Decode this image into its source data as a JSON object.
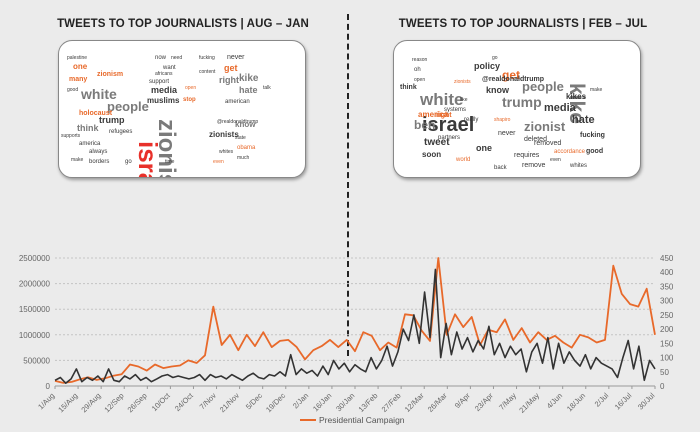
{
  "headings": {
    "left": "TWEETS TO TOP JOURNALISTS | AUG – JAN",
    "right": "TWEETS TO TOP JOURNALISTS | FEB – JUL"
  },
  "colors": {
    "orange": "#e8692a",
    "dark": "#333333",
    "red": "#e8302a"
  },
  "wordcloud_left": [
    {
      "w": "israel",
      "c": "red",
      "s": 26,
      "b": 1
    },
    {
      "w": "zionist",
      "c": "gray",
      "s": 24,
      "b": 1
    },
    {
      "w": "white",
      "c": "gray",
      "s": 14,
      "b": 1
    },
    {
      "w": "people",
      "c": "gray",
      "s": 13,
      "b": 1
    },
    {
      "w": "trump",
      "c": "dark",
      "s": 9,
      "b": 1
    },
    {
      "w": "media",
      "c": "dark",
      "s": 9,
      "b": 1
    },
    {
      "w": "muslims",
      "c": "dark",
      "s": 8,
      "b": 1
    },
    {
      "w": "zionists",
      "c": "dark",
      "s": 8,
      "b": 1
    },
    {
      "w": "kike",
      "c": "gray",
      "s": 10,
      "b": 1
    },
    {
      "w": "right",
      "c": "gray",
      "s": 9,
      "b": 1
    },
    {
      "w": "hate",
      "c": "gray",
      "s": 9,
      "b": 1
    },
    {
      "w": "think",
      "c": "gray",
      "s": 9,
      "b": 1
    },
    {
      "w": "holocaust",
      "c": "orange",
      "s": 7,
      "b": 1
    },
    {
      "w": "zionism",
      "c": "orange",
      "s": 7,
      "b": 1
    },
    {
      "w": "get",
      "c": "orange",
      "s": 9,
      "b": 1
    },
    {
      "w": "one",
      "c": "orange",
      "s": 8,
      "b": 1
    },
    {
      "w": "many",
      "c": "orange",
      "s": 7,
      "b": 1
    },
    {
      "w": "know",
      "c": "gray",
      "s": 8,
      "b": 1
    },
    {
      "w": "never",
      "c": "dark",
      "s": 7,
      "b": 0
    },
    {
      "w": "american",
      "c": "dark",
      "s": 6,
      "b": 0
    },
    {
      "w": "@realdonaldtrump",
      "c": "dark",
      "s": 5,
      "b": 0
    },
    {
      "w": "refugees",
      "c": "dark",
      "s": 6,
      "b": 0
    },
    {
      "w": "america",
      "c": "dark",
      "s": 6,
      "b": 0
    },
    {
      "w": "borders",
      "c": "dark",
      "s": 6,
      "b": 0
    },
    {
      "w": "stop",
      "c": "orange",
      "s": 6,
      "b": 1
    },
    {
      "w": "obama",
      "c": "orange",
      "s": 6,
      "b": 0
    },
    {
      "w": "much",
      "c": "dark",
      "s": 5,
      "b": 0
    },
    {
      "w": "always",
      "c": "dark",
      "s": 6,
      "b": 0
    },
    {
      "w": "support",
      "c": "dark",
      "s": 6,
      "b": 0
    },
    {
      "w": "want",
      "c": "dark",
      "s": 6,
      "b": 0
    },
    {
      "w": "go",
      "c": "dark",
      "s": 6,
      "b": 0
    },
    {
      "w": "make",
      "c": "dark",
      "s": 5,
      "b": 0
    },
    {
      "w": "talk",
      "c": "dark",
      "s": 5,
      "b": 0
    },
    {
      "w": "state",
      "c": "dark",
      "s": 5,
      "b": 0
    },
    {
      "w": "need",
      "c": "dark",
      "s": 5,
      "b": 0
    },
    {
      "w": "good",
      "c": "dark",
      "s": 5,
      "b": 0
    },
    {
      "w": "now",
      "c": "dark",
      "s": 6,
      "b": 0
    },
    {
      "w": "time",
      "c": "dark",
      "s": 5,
      "b": 0
    },
    {
      "w": "whites",
      "c": "dark",
      "s": 5,
      "b": 0
    },
    {
      "w": "palestine",
      "c": "dark",
      "s": 5,
      "b": 0
    },
    {
      "w": "africans",
      "c": "dark",
      "s": 5,
      "b": 0
    },
    {
      "w": "supports",
      "c": "dark",
      "s": 5,
      "b": 0
    },
    {
      "w": "open",
      "c": "orange",
      "s": 5,
      "b": 0
    },
    {
      "w": "even",
      "c": "orange",
      "s": 5,
      "b": 0
    },
    {
      "w": "fucking",
      "c": "dark",
      "s": 5,
      "b": 0
    },
    {
      "w": "content",
      "c": "dark",
      "s": 5,
      "b": 0
    }
  ],
  "wordcloud_right": [
    {
      "w": "israel",
      "c": "dark",
      "s": 20,
      "b": 1
    },
    {
      "w": "white",
      "c": "gray",
      "s": 17,
      "b": 1
    },
    {
      "w": "kike",
      "c": "gray",
      "s": 21,
      "b": 1
    },
    {
      "w": "zionist",
      "c": "gray",
      "s": 13,
      "b": 1
    },
    {
      "w": "trump",
      "c": "gray",
      "s": 14,
      "b": 1
    },
    {
      "w": "people",
      "c": "gray",
      "s": 13,
      "b": 1
    },
    {
      "w": "media",
      "c": "dark",
      "s": 11,
      "b": 1
    },
    {
      "w": "ben",
      "c": "gray",
      "s": 12,
      "b": 1
    },
    {
      "w": "hate",
      "c": "dark",
      "s": 11,
      "b": 1
    },
    {
      "w": "tweet",
      "c": "dark",
      "s": 10,
      "b": 1
    },
    {
      "w": "get",
      "c": "orange",
      "s": 12,
      "b": 1
    },
    {
      "w": "america",
      "c": "orange",
      "s": 8,
      "b": 1
    },
    {
      "w": "policy",
      "c": "dark",
      "s": 9,
      "b": 1
    },
    {
      "w": "@realdonaldtrump",
      "c": "dark",
      "s": 7,
      "b": 1
    },
    {
      "w": "know",
      "c": "dark",
      "s": 9,
      "b": 1
    },
    {
      "w": "one",
      "c": "dark",
      "s": 9,
      "b": 1
    },
    {
      "w": "soon",
      "c": "dark",
      "s": 8,
      "b": 1
    },
    {
      "w": "right",
      "c": "orange",
      "s": 7,
      "b": 1
    },
    {
      "w": "kikes",
      "c": "dark",
      "s": 8,
      "b": 1
    },
    {
      "w": "fucking",
      "c": "dark",
      "s": 7,
      "b": 1
    },
    {
      "w": "removed",
      "c": "dark",
      "s": 7,
      "b": 0
    },
    {
      "w": "requires",
      "c": "dark",
      "s": 7,
      "b": 0
    },
    {
      "w": "remove",
      "c": "dark",
      "s": 7,
      "b": 0
    },
    {
      "w": "deleted",
      "c": "dark",
      "s": 7,
      "b": 0
    },
    {
      "w": "never",
      "c": "dark",
      "s": 7,
      "b": 0
    },
    {
      "w": "accordance",
      "c": "orange",
      "s": 6,
      "b": 0
    },
    {
      "w": "whites",
      "c": "dark",
      "s": 6,
      "b": 0
    },
    {
      "w": "good",
      "c": "dark",
      "s": 7,
      "b": 1
    },
    {
      "w": "partners",
      "c": "dark",
      "s": 6,
      "b": 0
    },
    {
      "w": "systems",
      "c": "dark",
      "s": 6,
      "b": 0
    },
    {
      "w": "think",
      "c": "dark",
      "s": 7,
      "b": 1
    },
    {
      "w": "world",
      "c": "orange",
      "s": 6,
      "b": 0
    },
    {
      "w": "back",
      "c": "dark",
      "s": 6,
      "b": 0
    },
    {
      "w": "reason",
      "c": "dark",
      "s": 5,
      "b": 0
    },
    {
      "w": "make",
      "c": "dark",
      "s": 5,
      "b": 0
    },
    {
      "w": "shapiro",
      "c": "orange",
      "s": 5,
      "b": 0
    },
    {
      "w": "oh",
      "c": "dark",
      "s": 6,
      "b": 0
    },
    {
      "w": "open",
      "c": "dark",
      "s": 5,
      "b": 0
    },
    {
      "w": "like",
      "c": "dark",
      "s": 5,
      "b": 0
    },
    {
      "w": "zionists",
      "c": "orange",
      "s": 5,
      "b": 0
    },
    {
      "w": "really",
      "c": "dark",
      "s": 6,
      "b": 0
    },
    {
      "w": "go",
      "c": "dark",
      "s": 5,
      "b": 0
    },
    {
      "w": "even",
      "c": "dark",
      "s": 5,
      "b": 0
    }
  ],
  "chart_data": {
    "type": "line",
    "x_tick_labels": [
      "1/Aug",
      "15/Aug",
      "29/Aug",
      "12/Sep",
      "26/Sep",
      "10/Oct",
      "24/Oct",
      "7/Nov",
      "21/Nov",
      "5/Dec",
      "19/Dec",
      "2/Jan",
      "16/Jan",
      "30/Jan",
      "13/Feb",
      "27/Feb",
      "12/Mar",
      "26/Mar",
      "9/Apr",
      "23/Apr",
      "7/May",
      "21/May",
      "4/Jun",
      "18/Jun",
      "2/Jul",
      "16/Jul",
      "30/Jul"
    ],
    "y_left_ticks": [
      "0",
      "500000",
      "1000000",
      "1500000",
      "2000000",
      "2500000"
    ],
    "y_left_range": [
      0,
      2500000
    ],
    "y_right_ticks": [
      "0",
      "50",
      "100",
      "150",
      "200",
      "250",
      "300",
      "350",
      "400",
      "450"
    ],
    "y_right_range": [
      0,
      450
    ],
    "grid": "horizontal dashed",
    "legend_position": "bottom",
    "series": [
      {
        "name": "Presidential Campaign",
        "axis": "left",
        "color": "#e8692a",
        "values": [
          100000,
          60000,
          80000,
          130000,
          170000,
          120000,
          150000,
          200000,
          230000,
          420000,
          380000,
          300000,
          420000,
          350000,
          380000,
          400000,
          500000,
          450000,
          600000,
          1550000,
          800000,
          1000000,
          700000,
          1000000,
          780000,
          1050000,
          760000,
          880000,
          900000,
          760000,
          520000,
          700000,
          780000,
          900000,
          760000,
          900000,
          680000,
          1050000,
          980000,
          700000,
          850000,
          750000,
          1400000,
          1380000,
          1080000,
          880000,
          2600000,
          1000000,
          1400000,
          1150000,
          1350000,
          800000,
          1100000,
          1050000,
          1300000,
          900000,
          1130000,
          850000,
          1050000,
          900000,
          980000,
          850000,
          750000,
          1000000,
          950000,
          850000,
          900000,
          2350000,
          1800000,
          1600000,
          1550000,
          1900000,
          1000000
        ]
      },
      {
        "name": "",
        "axis": "right",
        "color": "#333333",
        "values": [
          20,
          30,
          10,
          25,
          60,
          15,
          30,
          20,
          35,
          15,
          60,
          20,
          15,
          35,
          25,
          40,
          20,
          30,
          15,
          25,
          35,
          40,
          30,
          35,
          30,
          25,
          30,
          40,
          20,
          40,
          30,
          35,
          25,
          40,
          30,
          20,
          35,
          45,
          30,
          25,
          40,
          35,
          50,
          35,
          110,
          40,
          60,
          45,
          55,
          35,
          70,
          40,
          90,
          60,
          80,
          50,
          75,
          60,
          50,
          100,
          60,
          90,
          140,
          70,
          120,
          200,
          160,
          250,
          150,
          330,
          170,
          410,
          100,
          220,
          110,
          190,
          130,
          170,
          120,
          160,
          130,
          210,
          110,
          150,
          100,
          140,
          110,
          130,
          50,
          120,
          150,
          80,
          170,
          60,
          150,
          80,
          120,
          90,
          70,
          110,
          60,
          100,
          80,
          70,
          60,
          30,
          100,
          160,
          60,
          140,
          20,
          90,
          60
        ]
      }
    ]
  }
}
